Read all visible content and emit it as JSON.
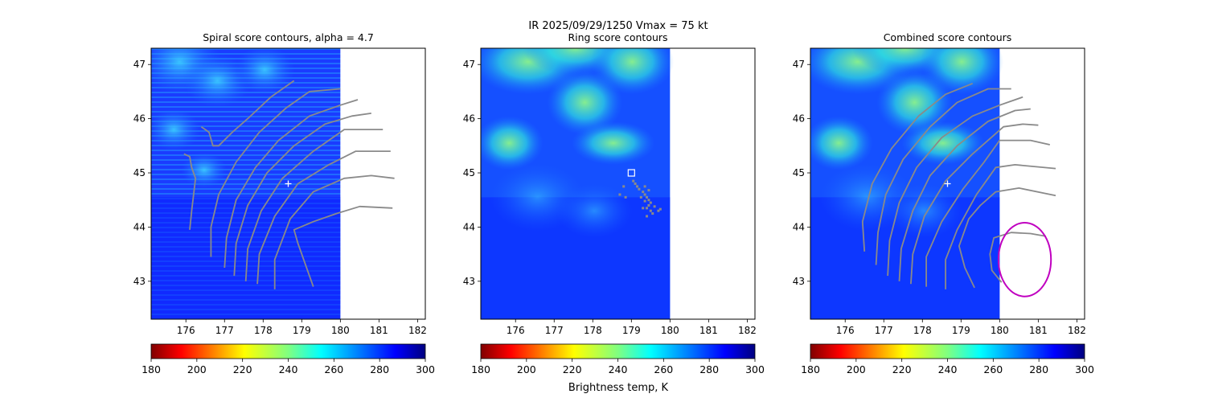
{
  "figure": {
    "suptitle_line1": "IR  2025/09/29/1250    Vmax = 75 kt",
    "colorbar_label": "Brightness temp, K"
  },
  "chart_data": [
    {
      "type": "heatmap",
      "title": "Spiral score contours, alpha =  4.7",
      "xlim": [
        175.1,
        182.2
      ],
      "ylim": [
        42.3,
        47.3
      ],
      "xticks": [
        "176",
        "177",
        "178",
        "179",
        "180",
        "181",
        "182"
      ],
      "yticks": [
        "43",
        "44",
        "45",
        "46",
        "47"
      ],
      "data_extent_lon": [
        175.1,
        180.0
      ],
      "center_marker": {
        "lon": 178.65,
        "lat": 44.8,
        "symbol": "+"
      },
      "contours": [
        [
          [
            176.4,
            45.85
          ],
          [
            176.6,
            45.75
          ],
          [
            176.7,
            45.5
          ],
          [
            176.85,
            45.5
          ],
          [
            177.2,
            45.75
          ],
          [
            177.6,
            46.0
          ],
          [
            178.2,
            46.4
          ],
          [
            178.8,
            46.7
          ]
        ],
        [
          [
            175.95,
            45.35
          ],
          [
            176.1,
            45.3
          ],
          [
            176.15,
            45.1
          ],
          [
            176.25,
            44.9
          ],
          [
            176.2,
            44.6
          ],
          [
            176.15,
            44.3
          ],
          [
            176.1,
            43.95
          ]
        ],
        [
          [
            176.65,
            43.45
          ],
          [
            176.65,
            44.0
          ],
          [
            176.85,
            44.6
          ],
          [
            177.3,
            45.2
          ],
          [
            177.9,
            45.75
          ],
          [
            178.6,
            46.2
          ],
          [
            179.2,
            46.5
          ],
          [
            180.0,
            46.55
          ]
        ],
        [
          [
            177.0,
            43.25
          ],
          [
            177.05,
            43.8
          ],
          [
            177.3,
            44.5
          ],
          [
            177.8,
            45.1
          ],
          [
            178.4,
            45.6
          ],
          [
            179.2,
            46.05
          ],
          [
            180.0,
            46.25
          ],
          [
            180.45,
            46.35
          ]
        ],
        [
          [
            177.25,
            43.1
          ],
          [
            177.3,
            43.7
          ],
          [
            177.6,
            44.4
          ],
          [
            178.1,
            45.0
          ],
          [
            178.8,
            45.5
          ],
          [
            179.6,
            45.9
          ],
          [
            180.3,
            46.05
          ],
          [
            180.8,
            46.1
          ]
        ],
        [
          [
            177.55,
            43.0
          ],
          [
            177.6,
            43.6
          ],
          [
            177.95,
            44.3
          ],
          [
            178.5,
            44.9
          ],
          [
            179.3,
            45.4
          ],
          [
            180.1,
            45.8
          ],
          [
            181.1,
            45.8
          ]
        ],
        [
          [
            177.85,
            42.95
          ],
          [
            177.9,
            43.5
          ],
          [
            178.3,
            44.2
          ],
          [
            178.9,
            44.8
          ],
          [
            179.7,
            45.15
          ],
          [
            180.4,
            45.4
          ],
          [
            181.3,
            45.4
          ]
        ],
        [
          [
            178.3,
            42.85
          ],
          [
            178.3,
            43.4
          ],
          [
            178.7,
            44.15
          ],
          [
            179.3,
            44.65
          ],
          [
            180.1,
            44.9
          ],
          [
            180.8,
            44.95
          ],
          [
            181.4,
            44.9
          ]
        ],
        [
          [
            179.3,
            42.9
          ],
          [
            179.1,
            43.3
          ],
          [
            178.9,
            43.7
          ],
          [
            178.8,
            43.95
          ],
          [
            179.3,
            44.1
          ],
          [
            179.9,
            44.25
          ],
          [
            180.5,
            44.38
          ],
          [
            181.35,
            44.35
          ]
        ]
      ],
      "colorbar": {
        "vmin": 180,
        "vmax": 300,
        "ticks": [
          "180",
          "200",
          "220",
          "240",
          "260",
          "280",
          "300"
        ],
        "cmap": "jet_r"
      }
    },
    {
      "type": "heatmap",
      "title": "Ring score contours",
      "xlim": [
        175.1,
        182.2
      ],
      "ylim": [
        42.3,
        47.3
      ],
      "xticks": [
        "176",
        "177",
        "178",
        "179",
        "180",
        "181",
        "182"
      ],
      "yticks": [
        "43",
        "44",
        "45",
        "46",
        "47"
      ],
      "data_extent_lon": [
        175.1,
        180.0
      ],
      "square_marker": {
        "lon": 179.0,
        "lat": 45.0
      },
      "ring_dots": [
        [
          179.05,
          44.85
        ],
        [
          179.1,
          44.8
        ],
        [
          179.15,
          44.75
        ],
        [
          179.2,
          44.7
        ],
        [
          179.3,
          44.65
        ],
        [
          179.35,
          44.6
        ],
        [
          179.4,
          44.55
        ],
        [
          179.45,
          44.5
        ],
        [
          179.5,
          44.45
        ],
        [
          179.45,
          44.4
        ],
        [
          179.4,
          44.35
        ],
        [
          179.5,
          44.3
        ],
        [
          179.55,
          44.25
        ],
        [
          179.35,
          44.75
        ],
        [
          179.45,
          44.68
        ],
        [
          179.25,
          44.55
        ],
        [
          179.35,
          44.48
        ],
        [
          179.6,
          44.38
        ],
        [
          179.7,
          44.3
        ],
        [
          179.75,
          44.33
        ],
        [
          178.7,
          44.6
        ],
        [
          178.8,
          44.75
        ],
        [
          178.85,
          44.55
        ],
        [
          179.3,
          44.35
        ],
        [
          179.4,
          44.2
        ]
      ],
      "colorbar": {
        "vmin": 180,
        "vmax": 300,
        "ticks": [
          "180",
          "200",
          "220",
          "240",
          "260",
          "280",
          "300"
        ],
        "cmap": "jet_r"
      }
    },
    {
      "type": "heatmap",
      "title": "Combined score contours",
      "xlim": [
        175.1,
        182.2
      ],
      "ylim": [
        42.3,
        47.3
      ],
      "xticks": [
        "176",
        "177",
        "178",
        "179",
        "180",
        "181",
        "182"
      ],
      "yticks": [
        "43",
        "44",
        "45",
        "46",
        "47"
      ],
      "data_extent_lon": [
        175.1,
        180.0
      ],
      "center_marker": {
        "lon": 178.65,
        "lat": 44.8,
        "symbol": "+"
      },
      "circle": {
        "lon": 180.65,
        "lat": 43.4,
        "radius_deg": 0.68,
        "color": "#c000c0"
      },
      "contours": [
        [
          [
            176.5,
            43.55
          ],
          [
            176.45,
            44.1
          ],
          [
            176.7,
            44.8
          ],
          [
            177.2,
            45.45
          ],
          [
            177.9,
            46.05
          ],
          [
            178.6,
            46.45
          ],
          [
            179.3,
            46.65
          ]
        ],
        [
          [
            176.8,
            43.3
          ],
          [
            176.85,
            43.9
          ],
          [
            177.05,
            44.6
          ],
          [
            177.5,
            45.25
          ],
          [
            178.2,
            45.85
          ],
          [
            178.9,
            46.3
          ],
          [
            179.7,
            46.55
          ],
          [
            180.3,
            46.55
          ]
        ],
        [
          [
            177.1,
            43.1
          ],
          [
            177.15,
            43.75
          ],
          [
            177.4,
            44.45
          ],
          [
            177.85,
            45.1
          ],
          [
            178.5,
            45.65
          ],
          [
            179.3,
            46.05
          ],
          [
            180.0,
            46.25
          ],
          [
            180.6,
            46.4
          ]
        ],
        [
          [
            177.4,
            43.0
          ],
          [
            177.45,
            43.6
          ],
          [
            177.75,
            44.3
          ],
          [
            178.2,
            44.95
          ],
          [
            178.9,
            45.5
          ],
          [
            179.7,
            45.95
          ],
          [
            180.4,
            46.15
          ],
          [
            180.8,
            46.18
          ]
        ],
        [
          [
            177.7,
            42.95
          ],
          [
            177.75,
            43.5
          ],
          [
            178.05,
            44.2
          ],
          [
            178.6,
            44.85
          ],
          [
            179.3,
            45.35
          ],
          [
            180.1,
            45.85
          ],
          [
            180.6,
            45.9
          ],
          [
            181.0,
            45.88
          ]
        ],
        [
          [
            178.1,
            42.9
          ],
          [
            178.1,
            43.45
          ],
          [
            178.5,
            44.1
          ],
          [
            179.05,
            44.7
          ],
          [
            179.6,
            45.2
          ],
          [
            180.0,
            45.6
          ],
          [
            180.8,
            45.6
          ],
          [
            181.3,
            45.52
          ]
        ],
        [
          [
            178.6,
            42.85
          ],
          [
            178.6,
            43.4
          ],
          [
            178.9,
            43.95
          ],
          [
            179.4,
            44.6
          ],
          [
            179.9,
            45.1
          ],
          [
            180.4,
            45.15
          ],
          [
            181.45,
            45.08
          ]
        ],
        [
          [
            179.35,
            42.88
          ],
          [
            179.1,
            43.25
          ],
          [
            178.95,
            43.65
          ],
          [
            179.2,
            44.15
          ],
          [
            179.5,
            44.4
          ],
          [
            179.9,
            44.65
          ],
          [
            180.5,
            44.72
          ],
          [
            181.45,
            44.58
          ]
        ],
        [
          [
            180.05,
            42.98
          ],
          [
            179.8,
            43.2
          ],
          [
            179.75,
            43.5
          ],
          [
            179.85,
            43.8
          ],
          [
            180.3,
            43.9
          ],
          [
            180.8,
            43.88
          ],
          [
            181.2,
            43.83
          ]
        ]
      ],
      "colorbar": {
        "vmin": 180,
        "vmax": 300,
        "ticks": [
          "180",
          "200",
          "220",
          "240",
          "260",
          "280",
          "300"
        ],
        "cmap": "jet_r"
      }
    }
  ]
}
